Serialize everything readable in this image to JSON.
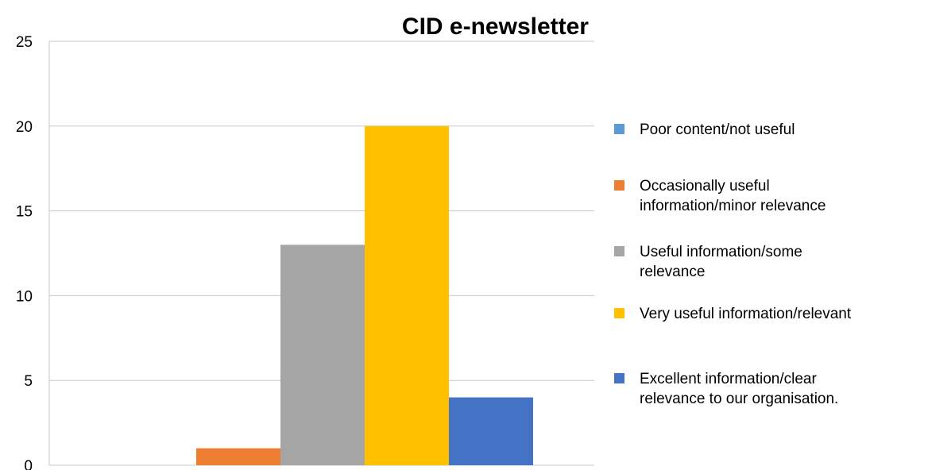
{
  "chart_data": {
    "type": "bar",
    "title": "CID e-newsletter",
    "xlabel": "",
    "ylabel": "",
    "ylim": [
      0,
      25
    ],
    "yticks": [
      0,
      5,
      10,
      15,
      20,
      25
    ],
    "grid": true,
    "legend_position": "right",
    "categories": [
      ""
    ],
    "series": [
      {
        "name": "Poor content/not useful",
        "values": [
          0
        ],
        "color": "#5B9BD5"
      },
      {
        "name": "Occasionally useful information/minor relevance",
        "values": [
          1
        ],
        "color": "#ED7D31"
      },
      {
        "name": "Useful information/some relevance",
        "values": [
          13
        ],
        "color": "#A5A5A5"
      },
      {
        "name": "Very useful information/relevant",
        "values": [
          20
        ],
        "color": "#FFC000"
      },
      {
        "name": "Excellent information/clear relevance to our organisation.",
        "values": [
          4
        ],
        "color": "#4472C4"
      }
    ]
  }
}
